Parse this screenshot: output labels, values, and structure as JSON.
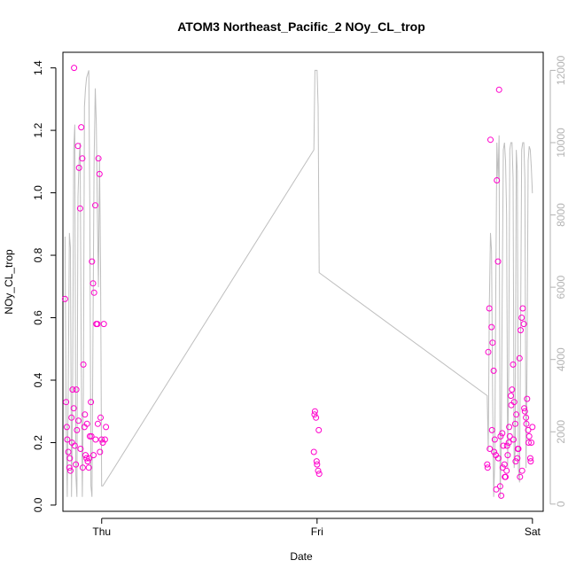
{
  "chart_data": {
    "type": "scatter",
    "title": "ATOM3 Northeast_Pacific_2 NOy_CL_trop",
    "xlabel": "Date",
    "ylabel": "NOy_CL_trop",
    "x_ticks": [
      "Thu",
      "Fri",
      "Sat"
    ],
    "x_range": [
      -0.18,
      2.05
    ],
    "ylim": [
      -0.02,
      1.45
    ],
    "y_ticks": [
      "0.0",
      "0.2",
      "0.4",
      "0.6",
      "0.8",
      "1.0",
      "1.2",
      "1.4"
    ],
    "y2_ticks": [
      "0",
      "2000",
      "4000",
      "6000",
      "8000",
      "10000",
      "12000"
    ],
    "y2lim": [
      -200,
      12500
    ],
    "point_color": "#ff00cc",
    "line_color": "#bebebe",
    "grid": false,
    "series": [
      {
        "kind": "points",
        "axis": "left",
        "x": [
          -0.17,
          -0.165,
          -0.16,
          -0.155,
          -0.15,
          -0.145,
          -0.14,
          -0.135,
          -0.13,
          -0.125,
          -0.12,
          -0.115,
          -0.11,
          -0.105,
          -0.1,
          -0.095,
          -0.09,
          -0.085,
          -0.08,
          -0.075,
          -0.07,
          -0.065,
          -0.06,
          -0.055,
          -0.05,
          -0.045,
          -0.04,
          -0.035,
          -0.03,
          -0.025,
          -0.02,
          -0.015,
          -0.01,
          -0.005,
          0.0,
          0.005,
          -0.162,
          -0.148,
          -0.138,
          -0.128,
          -0.118,
          -0.108,
          -0.098,
          -0.088,
          -0.078,
          -0.068,
          -0.058,
          -0.048,
          -0.038,
          -0.028,
          -0.018,
          -0.008,
          0.01,
          0.015,
          0.02,
          0.985,
          0.99,
          0.995,
          1.0,
          1.005,
          1.01,
          0.988,
          0.998,
          1.008,
          1.79,
          1.795,
          1.8,
          1.805,
          1.81,
          1.815,
          1.82,
          1.825,
          1.83,
          1.835,
          1.84,
          1.845,
          1.85,
          1.855,
          1.86,
          1.865,
          1.87,
          1.875,
          1.88,
          1.885,
          1.89,
          1.895,
          1.9,
          1.905,
          1.91,
          1.915,
          1.92,
          1.925,
          1.93,
          1.935,
          1.94,
          1.945,
          1.95,
          1.955,
          1.96,
          1.965,
          1.97,
          1.975,
          1.98,
          1.985,
          1.99,
          1.995,
          2.0,
          1.792,
          1.802,
          1.812,
          1.822,
          1.832,
          1.842,
          1.852,
          1.862,
          1.872,
          1.882,
          1.892,
          1.902,
          1.912,
          1.922,
          1.932,
          1.942,
          1.952,
          1.962,
          1.972,
          1.982,
          1.992
        ],
        "y": [
          0.66,
          0.33,
          0.21,
          0.17,
          0.12,
          0.11,
          0.28,
          0.37,
          0.31,
          0.19,
          0.13,
          0.24,
          1.15,
          1.08,
          0.95,
          1.21,
          1.11,
          0.45,
          0.25,
          0.16,
          0.15,
          0.14,
          0.12,
          0.22,
          0.33,
          0.78,
          0.71,
          0.68,
          0.96,
          0.58,
          0.58,
          1.11,
          1.06,
          0.28,
          0.21,
          0.2,
          0.25,
          0.15,
          0.2,
          1.4,
          0.37,
          0.27,
          0.18,
          0.12,
          0.29,
          0.26,
          0.15,
          0.22,
          0.16,
          0.21,
          0.26,
          0.17,
          0.58,
          0.21,
          0.25,
          0.17,
          0.3,
          0.28,
          0.13,
          0.11,
          0.1,
          0.29,
          0.14,
          0.24,
          0.13,
          0.49,
          0.63,
          1.17,
          0.57,
          0.52,
          0.43,
          0.21,
          0.16,
          1.04,
          0.78,
          1.33,
          0.06,
          0.03,
          0.23,
          0.19,
          0.13,
          0.09,
          0.11,
          0.16,
          0.2,
          0.22,
          0.35,
          0.37,
          0.45,
          0.33,
          0.26,
          0.29,
          0.15,
          0.18,
          0.47,
          0.56,
          0.6,
          0.63,
          0.58,
          0.3,
          0.28,
          0.34,
          0.24,
          0.22,
          0.15,
          0.2,
          0.25,
          0.12,
          0.18,
          0.24,
          0.17,
          0.05,
          0.15,
          0.22,
          0.12,
          0.09,
          0.19,
          0.25,
          0.32,
          0.21,
          0.14,
          0.18,
          0.09,
          0.11,
          0.31,
          0.26,
          0.2,
          0.14
        ]
      },
      {
        "kind": "line",
        "axis": "right",
        "x": [
          -0.17,
          -0.165,
          -0.16,
          -0.155,
          -0.15,
          -0.145,
          -0.14,
          -0.135,
          -0.13,
          -0.125,
          -0.12,
          -0.115,
          -0.11,
          -0.105,
          -0.1,
          -0.095,
          -0.09,
          -0.085,
          -0.08,
          -0.075,
          -0.07,
          -0.065,
          -0.06,
          -0.055,
          -0.05,
          -0.045,
          -0.04,
          -0.035,
          -0.03,
          -0.025,
          -0.02,
          -0.015,
          -0.01,
          -0.005,
          0.0,
          0.005,
          0.985,
          0.99,
          0.995,
          1.0,
          1.005,
          1.01,
          1.79,
          1.795,
          1.8,
          1.805,
          1.81,
          1.815,
          1.82,
          1.825,
          1.83,
          1.835,
          1.84,
          1.845,
          1.85,
          1.855,
          1.86,
          1.865,
          1.87,
          1.875,
          1.88,
          1.885,
          1.89,
          1.895,
          1.9,
          1.905,
          1.91,
          1.915,
          1.92,
          1.925,
          1.93,
          1.935,
          1.94,
          1.945,
          1.95,
          1.955,
          1.96,
          1.965,
          1.97,
          1.975,
          1.98,
          1.985,
          1.99,
          1.995,
          2.0
        ],
        "y": [
          7400,
          2500,
          200,
          3500,
          7500,
          7100,
          200,
          3000,
          9800,
          10500,
          800,
          200,
          8500,
          9500,
          10000,
          4000,
          200,
          3000,
          11000,
          11500,
          11800,
          11900,
          12000,
          8000,
          500,
          200,
          5000,
          9500,
          11500,
          10500,
          8000,
          6000,
          9600,
          6500,
          500,
          500,
          9800,
          12000,
          12000,
          12000,
          11000,
          6400,
          3000,
          1500,
          5500,
          7500,
          7000,
          3000,
          200,
          1200,
          6000,
          10000,
          9000,
          10200,
          200,
          1500,
          6000,
          9800,
          10000,
          9500,
          8000,
          1000,
          4000,
          9800,
          10000,
          10000,
          9000,
          1000,
          1500,
          9800,
          9200,
          1000,
          600,
          4800,
          9800,
          10000,
          10000,
          9000,
          1000,
          4000,
          9500,
          9900,
          9800,
          9300,
          8600
        ]
      }
    ]
  }
}
